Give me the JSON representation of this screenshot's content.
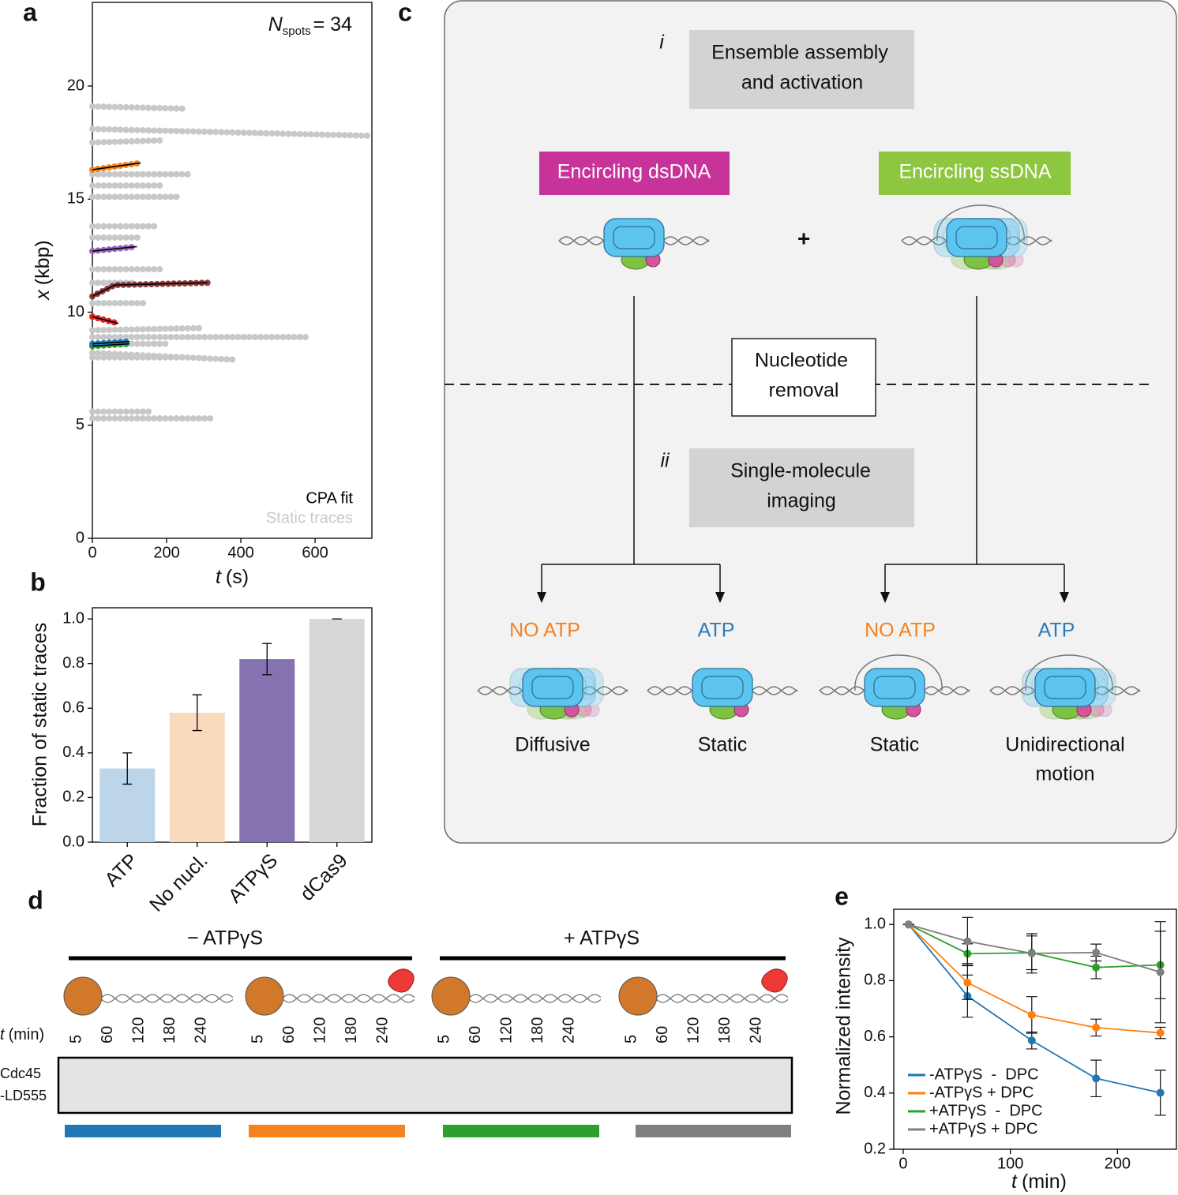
{
  "panel_labels": [
    "a",
    "b",
    "c",
    "d",
    "e"
  ],
  "chart_data": [
    {
      "type": "trace",
      "x_label": {
        "var": "t",
        "unit": "(s)"
      },
      "y_label": {
        "var": "x",
        "unit": "(kbp)"
      },
      "annotation": {
        "symbol": "N",
        "subscript": "spots",
        "text": "= 34"
      },
      "xlim": [
        0,
        753
      ],
      "ylim": [
        0,
        23.7
      ],
      "xticks": [
        0,
        200,
        400,
        600
      ],
      "yticks": [
        0,
        5,
        10,
        15,
        20
      ],
      "series": [
        {
          "name": "Static traces",
          "color": "#c8c8c8",
          "traces": [
            {
              "x": [
                0,
                245
              ],
              "values": [
                19.1,
                19.0
              ]
            },
            {
              "x": [
                0,
                750
              ],
              "values": [
                18.1,
                17.8
              ]
            },
            {
              "x": [
                0,
                190
              ],
              "values": [
                17.5,
                17.6
              ]
            },
            {
              "x": [
                0,
                270
              ],
              "values": [
                16.1,
                16.1
              ]
            },
            {
              "x": [
                0,
                190
              ],
              "values": [
                15.6,
                15.6
              ]
            },
            {
              "x": [
                0,
                240
              ],
              "values": [
                15.1,
                15.1
              ]
            },
            {
              "x": [
                0,
                180
              ],
              "values": [
                13.8,
                13.8
              ]
            },
            {
              "x": [
                0,
                130
              ],
              "values": [
                13.3,
                13.3
              ]
            },
            {
              "x": [
                0,
                190
              ],
              "values": [
                11.9,
                11.9
              ]
            },
            {
              "x": [
                0,
                120
              ],
              "values": [
                11.3,
                11.3
              ]
            },
            {
              "x": [
                0,
                150
              ],
              "values": [
                10.4,
                10.4
              ]
            },
            {
              "x": [
                0,
                300
              ],
              "values": [
                9.2,
                9.3
              ]
            },
            {
              "x": [
                0,
                580
              ],
              "values": [
                8.9,
                8.9
              ]
            },
            {
              "x": [
                0,
                210
              ],
              "values": [
                8.6,
                8.6
              ]
            },
            {
              "x": [
                0,
                380
              ],
              "values": [
                8.2,
                7.9
              ]
            },
            {
              "x": [
                0,
                250
              ],
              "values": [
                8.0,
                8.0
              ]
            },
            {
              "x": [
                0,
                160
              ],
              "values": [
                5.6,
                5.6
              ]
            },
            {
              "x": [
                0,
                320
              ],
              "values": [
                5.3,
                5.3
              ]
            }
          ]
        },
        {
          "name": "CPA fit",
          "color": "#000000",
          "traces": [
            {
              "x": [
                0,
                130
              ],
              "values": [
                16.3,
                16.6
              ]
            },
            {
              "x": [
                0,
                120
              ],
              "values": [
                12.7,
                12.9
              ]
            },
            {
              "x": [
                0,
                60,
                310
              ],
              "values": [
                10.7,
                11.2,
                11.3
              ]
            },
            {
              "x": [
                0,
                70
              ],
              "values": [
                9.8,
                9.5
              ]
            },
            {
              "x": [
                0,
                100
              ],
              "values": [
                8.5,
                8.6
              ]
            },
            {
              "x": [
                0,
                100
              ],
              "values": [
                8.6,
                8.7
              ]
            }
          ]
        }
      ],
      "moving_traces": [
        {
          "color": "#f58220",
          "x": [
            0,
            130
          ],
          "values": [
            16.3,
            16.6
          ]
        },
        {
          "color": "#9467bd",
          "x": [
            0,
            120
          ],
          "values": [
            12.7,
            12.9
          ]
        },
        {
          "color": "#8c3b3b",
          "x": [
            0,
            60,
            310
          ],
          "values": [
            10.7,
            11.2,
            11.3
          ]
        },
        {
          "color": "#d62728",
          "x": [
            0,
            70
          ],
          "values": [
            9.8,
            9.5
          ]
        },
        {
          "color": "#2ca02c",
          "x": [
            0,
            100
          ],
          "values": [
            8.5,
            8.6
          ]
        },
        {
          "color": "#1f77b4",
          "x": [
            0,
            100
          ],
          "values": [
            8.6,
            8.7
          ]
        }
      ]
    },
    {
      "type": "bar",
      "y_label": "Fraction of static traces",
      "categories": [
        "ATP",
        "No nucl.",
        "ATPγS",
        "dCas9"
      ],
      "values": [
        0.33,
        0.58,
        0.82,
        1.0
      ],
      "errors": [
        0.07,
        0.08,
        0.07,
        0.0
      ],
      "colors": [
        "#bcd5e8",
        "#fbd9bd",
        "#8572b0",
        "#d7d7d7"
      ],
      "ylim": [
        0,
        1.05
      ],
      "yticks": [
        {
          "value": 0,
          "label": "0.0"
        },
        0.2,
        0.4,
        0.6,
        0.8,
        {
          "value": 1,
          "label": "1.0"
        }
      ]
    },
    {
      "type": "line",
      "x_label": {
        "var": "t",
        "unit": "(min)"
      },
      "y_label": "Normalized intensity",
      "x": [
        5,
        60,
        120,
        180,
        240
      ],
      "xlim": [
        -8.8,
        255
      ],
      "ylim": [
        0.2,
        1.054
      ],
      "xticks": [
        0,
        100,
        200
      ],
      "yticks": [
        0.2,
        0.4,
        0.6,
        0.8,
        {
          "value": 1,
          "label": "1.0"
        }
      ],
      "series": [
        {
          "name": "-ATPγS  -  DPC",
          "color": "#1f77b4",
          "values": [
            1.0,
            0.745,
            0.587,
            0.452,
            0.401
          ],
          "errors": [
            0,
            0.075,
            0.03,
            0.065,
            0.08
          ]
        },
        {
          "name": "-ATPγS + DPC",
          "color": "#ff7f0e",
          "values": [
            1.0,
            0.793,
            0.678,
            0.633,
            0.614
          ],
          "errors": [
            0,
            0.06,
            0.065,
            0.03,
            0.02
          ]
        },
        {
          "name": "+ATPγS  -  DPC",
          "color": "#2ca02c",
          "values": [
            1.0,
            0.896,
            0.899,
            0.847,
            0.856
          ],
          "errors": [
            0,
            0.035,
            0.06,
            0.04,
            0.12
          ]
        },
        {
          "name": "+ATPγS + DPC",
          "color": "#7f7f7f",
          "values": [
            1.0,
            0.94,
            0.897,
            0.9,
            0.83
          ],
          "errors": [
            0,
            0.085,
            0.07,
            0.03,
            0.18
          ]
        }
      ]
    }
  ],
  "diagram": {
    "steps": [
      {
        "numeral": "i",
        "lines": [
          "Ensemble assembly",
          "and activation"
        ]
      },
      {
        "numeral": "ii",
        "lines": [
          "Single-molecule",
          "imaging"
        ]
      }
    ],
    "states": [
      "Encircling dsDNA",
      "Encircling ssDNA"
    ],
    "plus": "+",
    "removal": [
      "Nucleotide",
      "removal"
    ],
    "conditions": [
      "NO ATP",
      "ATP",
      "NO ATP",
      "ATP"
    ],
    "outcomes": [
      [
        "Diffusive"
      ],
      [
        "Static"
      ],
      [
        "Static"
      ],
      [
        "Unidirectional",
        "motion"
      ]
    ]
  },
  "gel": {
    "conditions": [
      "− ATPγS",
      "+ ATPγS"
    ],
    "time_label": {
      "var": "t",
      "unit": "(min)"
    },
    "lanes": [
      [
        "5",
        "60",
        "120",
        "180",
        "240"
      ],
      [
        "5",
        "60",
        "120",
        "180",
        "240"
      ],
      [
        "5",
        "60",
        "120",
        "180",
        "240"
      ],
      [
        "5",
        "60",
        "120",
        "180",
        "240"
      ]
    ],
    "protein": [
      "Cdc45",
      "-LD555"
    ]
  }
}
